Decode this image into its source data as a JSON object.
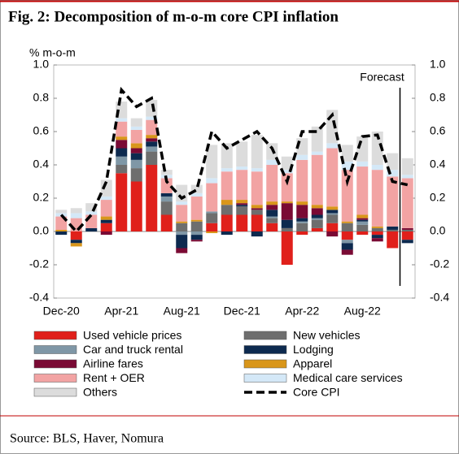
{
  "chart_data": {
    "type": "stacked_bar",
    "title": "Fig. 2:  Decomposition of m-o-m core CPI inflation",
    "y_label": "% m-o-m",
    "annotation": "Forecast",
    "source": "Source: BLS, Haver, Nomura",
    "categories": [
      "Dec-20",
      null,
      null,
      null,
      "Apr-21",
      null,
      null,
      null,
      "Aug-21",
      null,
      null,
      null,
      "Dec-21",
      null,
      null,
      null,
      "Apr-22",
      null,
      null,
      null,
      "Aug-22",
      null,
      null,
      null
    ],
    "series": [
      {
        "name": "Used vehicle prices",
        "color": "#e0201b",
        "values": [
          0,
          -0.05,
          0,
          0.05,
          0.35,
          0.3,
          0.4,
          0.1,
          0,
          0,
          0.05,
          0.1,
          0.1,
          0.1,
          0.05,
          -0.2,
          -0.02,
          0.02,
          0.05,
          -0.05,
          -0.02,
          -0.02,
          -0.1,
          -0.05
        ]
      },
      {
        "name": "New vehicles",
        "color": "#6e6e6e",
        "values": [
          0,
          0,
          0,
          0,
          0.05,
          0.08,
          0.08,
          0.08,
          0.05,
          0.06,
          0.06,
          0.06,
          0.05,
          0.03,
          0.03,
          0.02,
          0.05,
          0.05,
          0.05,
          0.05,
          0.04,
          0.02,
          0.01,
          0.01
        ]
      },
      {
        "name": "Car and truck rental",
        "color": "#7f97a6",
        "values": [
          0,
          0,
          0,
          0,
          0.05,
          0.05,
          0.03,
          0.03,
          -0.02,
          -0.02,
          0.01,
          0,
          0,
          0,
          0.01,
          0,
          0.01,
          0.01,
          0.01,
          -0.02,
          0.02,
          0,
          0,
          0
        ]
      },
      {
        "name": "Lodging",
        "color": "#0d2a4f",
        "values": [
          -0.02,
          -0.02,
          0.02,
          0.02,
          0.05,
          0.04,
          0.03,
          0.02,
          -0.08,
          -0.03,
          0,
          -0.02,
          0.01,
          -0.03,
          0.04,
          0.05,
          0.02,
          0.02,
          0.02,
          -0.04,
          0.01,
          -0.02,
          0.02,
          -0.02
        ]
      },
      {
        "name": "Airline fares",
        "color": "#7a0a34",
        "values": [
          0,
          0,
          0,
          -0.02,
          0.05,
          0.03,
          0.02,
          0,
          -0.03,
          -0.01,
          0,
          0,
          0.01,
          0.01,
          0.03,
          0.1,
          0.08,
          0.04,
          -0.03,
          -0.03,
          0.01,
          -0.02,
          0,
          0.01
        ]
      },
      {
        "name": "Apparel",
        "color": "#d9961a",
        "values": [
          0.01,
          -0.02,
          0,
          0.02,
          0.02,
          0.03,
          0.02,
          0,
          0.01,
          0.01,
          -0.01,
          0.03,
          0.02,
          0.02,
          0.02,
          0.01,
          0.02,
          0.02,
          0.02,
          0.01,
          0.02,
          0.01,
          0,
          0
        ]
      },
      {
        "name": "Rent + OER",
        "color": "#f2a3a3",
        "values": [
          0.08,
          0.08,
          0.08,
          0.1,
          0.09,
          0.08,
          0.09,
          0.09,
          0.1,
          0.14,
          0.17,
          0.17,
          0.18,
          0.2,
          0.22,
          0.17,
          0.25,
          0.3,
          0.35,
          0.31,
          0.29,
          0.34,
          0.3,
          0.3
        ]
      },
      {
        "name": "Medical care services",
        "color": "#d4e8f7",
        "values": [
          0.02,
          0.03,
          0.02,
          0.02,
          0.02,
          0.02,
          0.02,
          0.02,
          0.02,
          0.02,
          0.03,
          0.02,
          0.02,
          0.02,
          0.03,
          0.02,
          0.03,
          0.02,
          0.03,
          0.05,
          0.03,
          0.03,
          0.04,
          0.02
        ]
      },
      {
        "name": "Others",
        "color": "#dcdcdc",
        "values": [
          0.02,
          0.03,
          0.05,
          0.1,
          0.1,
          0.05,
          0.1,
          0.03,
          0.1,
          0.05,
          0.2,
          0.15,
          0.15,
          0.2,
          0.1,
          0.08,
          0.1,
          0.15,
          0.2,
          0.1,
          0.15,
          0.2,
          0.1,
          0.1
        ]
      },
      {
        "name": "Core CPI",
        "color": "#000000",
        "type": "line",
        "dashed": true,
        "values": [
          0.1,
          0.0,
          0.1,
          0.3,
          0.85,
          0.75,
          0.8,
          0.3,
          0.2,
          0.25,
          0.6,
          0.5,
          0.55,
          0.6,
          0.5,
          0.3,
          0.6,
          0.6,
          0.7,
          0.3,
          0.57,
          0.58,
          0.3,
          0.28
        ]
      }
    ],
    "ylim": [
      -0.4,
      1.0
    ],
    "yticks": [
      {
        "value": 1.0,
        "label": "1.0"
      },
      0.8,
      0.6,
      0.4,
      0.2,
      {
        "value": 0,
        "label": "0.0"
      },
      -0.2,
      -0.4
    ],
    "y2lim": [
      -0.4,
      1.0
    ],
    "y2ticks": [
      {
        "value": 1.0,
        "label": "1.0"
      },
      0.8,
      0.6,
      0.4,
      0.2,
      {
        "value": 0,
        "label": "0.0"
      },
      -0.2,
      -0.4
    ]
  }
}
